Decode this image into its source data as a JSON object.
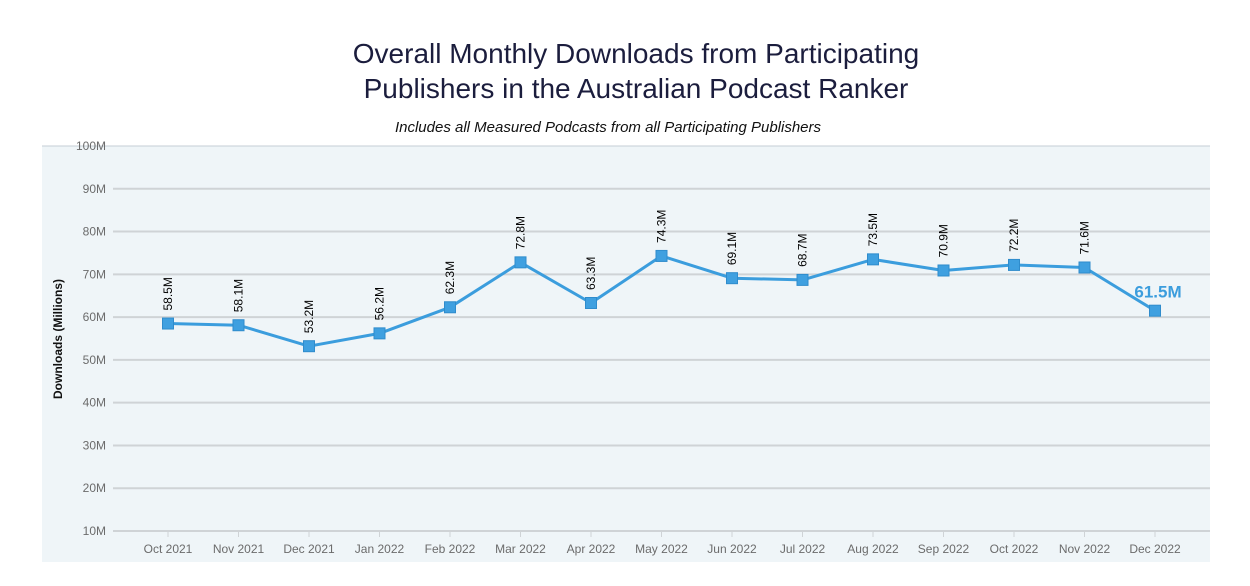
{
  "colors": {
    "line": "#3b9ddd",
    "marker": "#3fa0e0",
    "plot_background": "#eff5f8",
    "gridline": "#cfd3d6",
    "title": "#1b1d3d"
  },
  "chart_data": {
    "type": "line",
    "title_lines": [
      "Overall Monthly Downloads from Participating",
      "Publishers in the Australian Podcast Ranker"
    ],
    "subtitle": "Includes all Measured Podcasts from all Participating Publishers",
    "xlabel": "",
    "ylabel": "Downloads (Millions)",
    "ylim": [
      10,
      100
    ],
    "yticks": [
      10,
      20,
      30,
      40,
      50,
      60,
      70,
      80,
      90,
      100
    ],
    "ytick_labels": [
      "10M",
      "20M",
      "30M",
      "40M",
      "50M",
      "60M",
      "70M",
      "80M",
      "90M",
      "100M"
    ],
    "grid": true,
    "marker": "square",
    "categories": [
      "Oct 2021",
      "Nov 2021",
      "Dec 2021",
      "Jan 2022",
      "Feb 2022",
      "Mar 2022",
      "Apr 2022",
      "May 2022",
      "Jun 2022",
      "Jul 2022",
      "Aug 2022",
      "Sep 2022",
      "Oct 2022",
      "Nov 2022",
      "Dec 2022"
    ],
    "values": [
      58.5,
      58.1,
      53.2,
      56.2,
      62.3,
      72.8,
      63.3,
      74.3,
      69.1,
      68.7,
      73.5,
      70.9,
      72.2,
      71.6,
      61.5
    ],
    "data_labels": [
      "58.5M",
      "58.1M",
      "53.2M",
      "56.2M",
      "62.3M",
      "72.8M",
      "63.3M",
      "74.3M",
      "69.1M",
      "68.7M",
      "73.5M",
      "70.9M",
      "72.2M",
      "71.6M",
      "61.5M"
    ]
  }
}
